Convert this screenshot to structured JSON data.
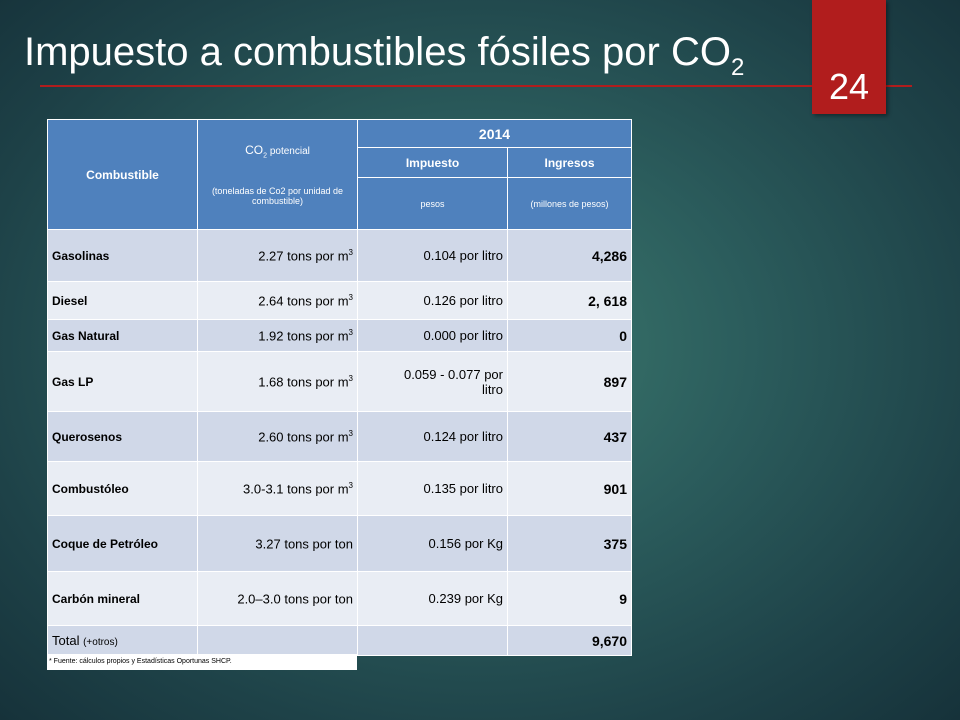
{
  "slide": {
    "title": "Impuesto a combustibles fósiles por CO",
    "title_sub": "2",
    "number": "24"
  },
  "table": {
    "headers": {
      "fuel": "Combustible",
      "co2_main": "CO",
      "co2_sub": "2",
      "co2_rest": " potencial",
      "co2_unit": "(toneladas de Co2 por unidad de combustible)",
      "year": "2014",
      "tax": "Impuesto",
      "tax_unit": "pesos",
      "revenue": "Ingresos",
      "revenue_unit": "(millones de pesos)"
    },
    "rows": [
      {
        "fuel": "Gasolinas",
        "co2": "2.27 tons por m",
        "co2_sup": "3",
        "tax": "0.104 por litro",
        "revenue": "4,286"
      },
      {
        "fuel": "Diesel",
        "co2": "2.64 tons por m",
        "co2_sup": "3",
        "tax": "0.126 por litro",
        "revenue": "2, 618"
      },
      {
        "fuel": "Gas Natural",
        "co2": "1.92 tons por m",
        "co2_sup": "3",
        "tax": "0.000 por litro",
        "revenue": "0"
      },
      {
        "fuel": "Gas LP",
        "co2": "1.68 tons por m",
        "co2_sup": "3",
        "tax": "0.059 - 0.077 por litro",
        "revenue": "897"
      },
      {
        "fuel": "Querosenos",
        "co2": "2.60 tons por m",
        "co2_sup": "3",
        "tax": "0.124 por litro",
        "revenue": "437"
      },
      {
        "fuel": "Combustóleo",
        "co2": "3.0-3.1 tons por m",
        "co2_sup": "3",
        "tax": "0.135 por litro",
        "revenue": "901"
      },
      {
        "fuel": "Coque de Petróleo",
        "co2": "3.27 tons por ton",
        "co2_sup": "",
        "tax": "0.156 por Kg",
        "revenue": "375"
      },
      {
        "fuel": "Carbón mineral",
        "co2": "2.0–3.0 tons por ton",
        "co2_sup": "",
        "tax": "0.239 por Kg",
        "revenue": "9"
      }
    ],
    "total": {
      "label": "Total",
      "label_note": "(+otros)",
      "revenue": "9,670"
    },
    "note": "* Fuente: cálculos propios y Estadísticas Oportunas SHCP."
  }
}
